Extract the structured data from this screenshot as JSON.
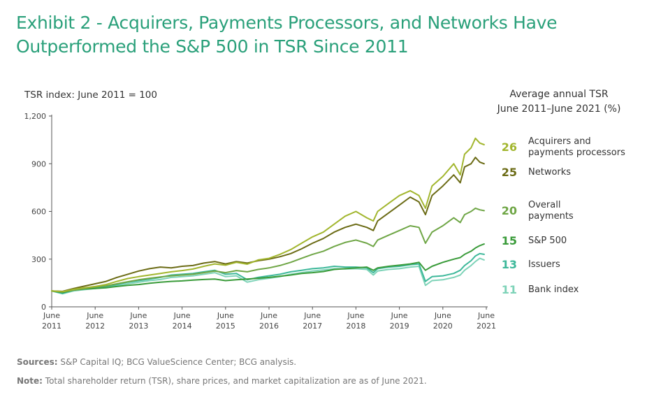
{
  "title_line1": "Exhibit 2 - Acquirers, Payments Processors, and Networks Have",
  "title_line2": "Outperformed the S&P 500 in TSR Since 2011",
  "legend_head_line1": "Average annual TSR",
  "legend_head_line2": "June 2011–June 2021 (%)",
  "sources_label": "Sources:",
  "sources_text": "S&P Capital IQ; BCG ValueScience Center; BCG analysis.",
  "note_label": "Note:",
  "note_text": "Total shareholder return (TSR), share prices, and market capitalization are as of June 2021.",
  "legend": [
    {
      "value": "26",
      "name_line1": "Acquirers and",
      "name_line2": "payments processors",
      "color": "#a2b62e"
    },
    {
      "value": "25",
      "name_line1": "Networks",
      "name_line2": "",
      "color": "#6b6b15"
    },
    {
      "value": "20",
      "name_line1": "Overall",
      "name_line2": "payments",
      "color": "#6fa646"
    },
    {
      "value": "15",
      "name_line1": "S&P 500",
      "name_line2": "",
      "color": "#3a9b3a"
    },
    {
      "value": "13",
      "name_line1": "Issuers",
      "name_line2": "",
      "color": "#3db89a"
    },
    {
      "value": "11",
      "name_line1": "Bank index",
      "name_line2": "",
      "color": "#7ed3b8"
    }
  ],
  "chart_data": {
    "type": "line",
    "ylabel": "TSR index: June 2011 = 100",
    "ylim": [
      0,
      1200
    ],
    "yticks": [
      "0",
      "300",
      "600",
      "900",
      "1,200"
    ],
    "xticks": [
      {
        "l1": "June",
        "l2": "2011"
      },
      {
        "l1": "June",
        "l2": "2012"
      },
      {
        "l1": "June",
        "l2": "2013"
      },
      {
        "l1": "June",
        "l2": "2014"
      },
      {
        "l1": "June",
        "l2": "2015"
      },
      {
        "l1": "June",
        "l2": "2016"
      },
      {
        "l1": "June",
        "l2": "2017"
      },
      {
        "l1": "June",
        "l2": "2018"
      },
      {
        "l1": "June",
        "l2": "2019"
      },
      {
        "l1": "June",
        "l2": "2020"
      },
      {
        "l1": "June",
        "l2": "2021"
      }
    ],
    "xlim": [
      2011.5,
      2021.5
    ],
    "grid": false,
    "series": [
      {
        "name": "Acquirers and payments processors",
        "color": "#a2b62e",
        "x": [
          2011.5,
          2011.75,
          2012.0,
          2012.25,
          2012.5,
          2012.75,
          2013.0,
          2013.25,
          2013.5,
          2013.75,
          2014.0,
          2014.25,
          2014.5,
          2014.75,
          2015.0,
          2015.25,
          2015.5,
          2015.75,
          2016.0,
          2016.25,
          2016.5,
          2016.75,
          2017.0,
          2017.25,
          2017.5,
          2017.75,
          2018.0,
          2018.25,
          2018.5,
          2018.75,
          2018.9,
          2019.0,
          2019.25,
          2019.5,
          2019.75,
          2019.95,
          2020.1,
          2020.25,
          2020.5,
          2020.75,
          2020.9,
          2021.0,
          2021.15,
          2021.25,
          2021.35,
          2021.45
        ],
        "y": [
          100,
          95,
          110,
          120,
          128,
          140,
          160,
          178,
          190,
          200,
          210,
          220,
          228,
          238,
          255,
          270,
          262,
          280,
          268,
          295,
          305,
          330,
          360,
          400,
          440,
          470,
          520,
          570,
          600,
          560,
          540,
          600,
          650,
          700,
          730,
          700,
          620,
          760,
          820,
          900,
          830,
          960,
          1000,
          1060,
          1030,
          1020
        ]
      },
      {
        "name": "Networks",
        "color": "#6b6b15",
        "x": [
          2011.5,
          2011.75,
          2012.0,
          2012.25,
          2012.5,
          2012.75,
          2013.0,
          2013.25,
          2013.5,
          2013.75,
          2014.0,
          2014.25,
          2014.5,
          2014.75,
          2015.0,
          2015.25,
          2015.5,
          2015.75,
          2016.0,
          2016.25,
          2016.5,
          2016.75,
          2017.0,
          2017.25,
          2017.5,
          2017.75,
          2018.0,
          2018.25,
          2018.5,
          2018.75,
          2018.9,
          2019.0,
          2019.25,
          2019.5,
          2019.75,
          2019.95,
          2020.1,
          2020.25,
          2020.5,
          2020.75,
          2020.9,
          2021.0,
          2021.15,
          2021.25,
          2021.35,
          2021.45
        ],
        "y": [
          100,
          97,
          115,
          130,
          145,
          160,
          185,
          205,
          225,
          240,
          250,
          245,
          255,
          260,
          275,
          285,
          270,
          285,
          275,
          290,
          300,
          315,
          335,
          365,
          400,
          430,
          470,
          500,
          520,
          500,
          480,
          540,
          590,
          640,
          690,
          660,
          580,
          700,
          760,
          830,
          780,
          880,
          900,
          940,
          910,
          900
        ]
      },
      {
        "name": "Overall payments",
        "color": "#6fa646",
        "x": [
          2011.5,
          2011.75,
          2012.0,
          2012.25,
          2012.5,
          2012.75,
          2013.0,
          2013.25,
          2013.5,
          2013.75,
          2014.0,
          2014.25,
          2014.5,
          2014.75,
          2015.0,
          2015.25,
          2015.5,
          2015.75,
          2016.0,
          2016.25,
          2016.5,
          2016.75,
          2017.0,
          2017.25,
          2017.5,
          2017.75,
          2018.0,
          2018.25,
          2018.5,
          2018.75,
          2018.9,
          2019.0,
          2019.25,
          2019.5,
          2019.75,
          2019.95,
          2020.1,
          2020.25,
          2020.5,
          2020.75,
          2020.9,
          2021.0,
          2021.15,
          2021.25,
          2021.35,
          2021.45
        ],
        "y": [
          100,
          95,
          105,
          115,
          125,
          132,
          145,
          158,
          170,
          180,
          188,
          195,
          200,
          205,
          215,
          225,
          215,
          228,
          220,
          235,
          245,
          260,
          280,
          305,
          330,
          350,
          380,
          405,
          420,
          400,
          380,
          420,
          450,
          480,
          510,
          500,
          400,
          470,
          510,
          560,
          530,
          580,
          600,
          620,
          610,
          605
        ]
      },
      {
        "name": "S&P 500",
        "color": "#3a9b3a",
        "x": [
          2011.5,
          2011.75,
          2012.0,
          2012.25,
          2012.5,
          2012.75,
          2013.0,
          2013.25,
          2013.5,
          2013.75,
          2014.0,
          2014.25,
          2014.5,
          2014.75,
          2015.0,
          2015.25,
          2015.5,
          2015.75,
          2016.0,
          2016.25,
          2016.5,
          2016.75,
          2017.0,
          2017.25,
          2017.5,
          2017.75,
          2018.0,
          2018.25,
          2018.5,
          2018.75,
          2018.9,
          2019.0,
          2019.25,
          2019.5,
          2019.75,
          2019.95,
          2020.1,
          2020.25,
          2020.5,
          2020.75,
          2020.9,
          2021.0,
          2021.15,
          2021.25,
          2021.35,
          2021.45
        ],
        "y": [
          100,
          90,
          105,
          112,
          115,
          120,
          128,
          135,
          140,
          148,
          155,
          160,
          163,
          168,
          172,
          175,
          165,
          170,
          175,
          180,
          185,
          192,
          200,
          210,
          215,
          222,
          235,
          240,
          245,
          250,
          230,
          245,
          255,
          262,
          270,
          280,
          230,
          255,
          280,
          300,
          310,
          330,
          350,
          370,
          385,
          395
        ]
      },
      {
        "name": "Issuers",
        "color": "#3db89a",
        "x": [
          2011.5,
          2011.75,
          2012.0,
          2012.25,
          2012.5,
          2012.75,
          2013.0,
          2013.25,
          2013.5,
          2013.75,
          2014.0,
          2014.25,
          2014.5,
          2014.75,
          2015.0,
          2015.25,
          2015.5,
          2015.75,
          2016.0,
          2016.25,
          2016.5,
          2016.75,
          2017.0,
          2017.25,
          2017.5,
          2017.75,
          2018.0,
          2018.25,
          2018.5,
          2018.75,
          2018.9,
          2019.0,
          2019.25,
          2019.5,
          2019.75,
          2019.95,
          2020.1,
          2020.25,
          2020.5,
          2020.75,
          2020.9,
          2021.0,
          2021.15,
          2021.25,
          2021.35,
          2021.45
        ],
        "y": [
          100,
          85,
          105,
          115,
          120,
          128,
          140,
          155,
          165,
          175,
          185,
          200,
          205,
          210,
          220,
          230,
          205,
          210,
          170,
          185,
          195,
          205,
          220,
          230,
          240,
          245,
          255,
          250,
          250,
          245,
          215,
          240,
          250,
          255,
          265,
          270,
          160,
          190,
          195,
          210,
          230,
          260,
          290,
          320,
          335,
          330
        ]
      },
      {
        "name": "Bank index",
        "color": "#7ed3b8",
        "x": [
          2011.5,
          2011.75,
          2012.0,
          2012.25,
          2012.5,
          2012.75,
          2013.0,
          2013.25,
          2013.5,
          2013.75,
          2014.0,
          2014.25,
          2014.5,
          2014.75,
          2015.0,
          2015.25,
          2015.5,
          2015.75,
          2016.0,
          2016.25,
          2016.5,
          2016.75,
          2017.0,
          2017.25,
          2017.5,
          2017.75,
          2018.0,
          2018.25,
          2018.5,
          2018.75,
          2018.9,
          2019.0,
          2019.25,
          2019.5,
          2019.75,
          2019.95,
          2020.1,
          2020.25,
          2020.5,
          2020.75,
          2020.9,
          2021.0,
          2021.15,
          2021.25,
          2021.35,
          2021.45
        ],
        "y": [
          100,
          82,
          100,
          108,
          115,
          122,
          132,
          145,
          155,
          165,
          172,
          185,
          190,
          195,
          205,
          215,
          190,
          195,
          155,
          170,
          180,
          190,
          205,
          215,
          225,
          232,
          240,
          238,
          240,
          235,
          200,
          225,
          235,
          240,
          250,
          255,
          135,
          165,
          170,
          185,
          200,
          230,
          260,
          285,
          305,
          295
        ]
      }
    ]
  }
}
